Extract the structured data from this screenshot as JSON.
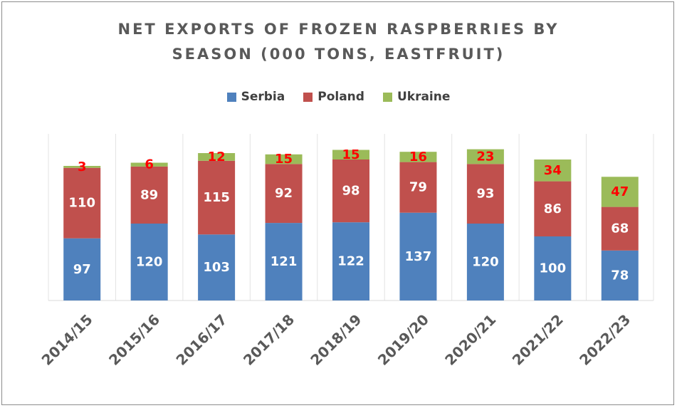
{
  "chart_data": {
    "type": "bar",
    "stacked": true,
    "title_lines": [
      "NET EXPORTS OF FROZEN RASPBERRIES BY",
      "SEASON (000 TONS, EASTFRUIT)"
    ],
    "title": "NET EXPORTS OF FROZEN RASPBERRIES BY SEASON (000 TONS, EASTFRUIT)",
    "categories": [
      "2014/15",
      "2015/16",
      "2016/17",
      "2017/18",
      "2018/19",
      "2019/20",
      "2020/21",
      "2021/22",
      "2022/23"
    ],
    "series": [
      {
        "name": "Serbia",
        "color": "#4f81bd",
        "label_color": "#ffffff",
        "values": [
          97,
          120,
          103,
          121,
          122,
          137,
          120,
          100,
          78
        ]
      },
      {
        "name": "Poland",
        "color": "#c0504d",
        "label_color": "#ffffff",
        "values": [
          110,
          89,
          115,
          92,
          98,
          79,
          93,
          86,
          68
        ]
      },
      {
        "name": "Ukraine",
        "color": "#9bbb59",
        "label_color": "#ff0000",
        "values": [
          3,
          6,
          12,
          15,
          15,
          16,
          23,
          34,
          47
        ]
      }
    ],
    "ylim": [
      0,
      250
    ],
    "grid": "vertical separators",
    "legend_position": "top",
    "xlabel": "",
    "ylabel": ""
  }
}
